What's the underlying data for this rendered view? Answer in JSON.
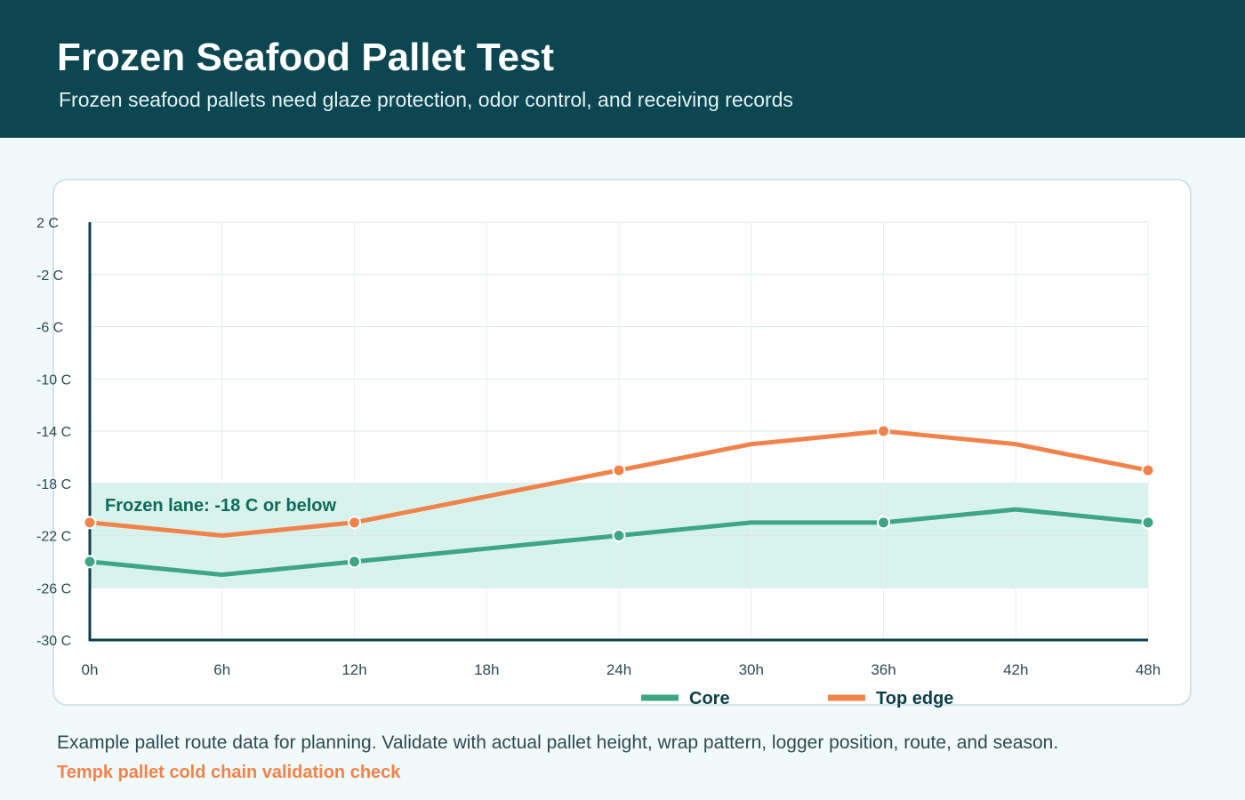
{
  "header": {
    "title": "Frozen Seafood Pallet Test",
    "subtitle": "Frozen seafood pallets need glaze protection, odor control, and receiving records"
  },
  "footer": {
    "note": "Example pallet route data for planning. Validate with actual pallet height, wrap pattern, logger position, route, and season.",
    "link_text": "Tempk pallet cold chain validation check"
  },
  "colors": {
    "header_bg": "#0b4651",
    "core": "#3ea585",
    "top_edge": "#f0834a",
    "band": "#d8f2ec",
    "band_label": "#0d6b59",
    "axis": "#0b3f4a"
  },
  "chart_data": {
    "type": "line",
    "x": [
      "0h",
      "6h",
      "12h",
      "18h",
      "24h",
      "30h",
      "36h",
      "42h",
      "48h"
    ],
    "x_hours": [
      0,
      6,
      12,
      18,
      24,
      30,
      36,
      42,
      48
    ],
    "y_ticks": [
      "2 C",
      "-2 C",
      "-6 C",
      "-10 C",
      "-14 C",
      "-18 C",
      "-22 C",
      "-26 C",
      "-30 C"
    ],
    "y_tick_values": [
      2,
      -2,
      -6,
      -10,
      -14,
      -18,
      -22,
      -26,
      -30
    ],
    "ylim": [
      -30,
      2
    ],
    "grid": true,
    "legend_position": "bottom-right",
    "band": {
      "from": -26,
      "to": -18,
      "label": "Frozen lane: -18 C or below"
    },
    "series": [
      {
        "name": "Core",
        "color": "#3ea585",
        "values": [
          -24,
          -25,
          -24,
          -23,
          -22,
          -21,
          -21,
          -20,
          -21
        ],
        "markers_at": [
          0,
          12,
          24,
          36,
          48
        ]
      },
      {
        "name": "Top edge",
        "color": "#f0834a",
        "values": [
          -21,
          -22,
          -21,
          -19,
          -17,
          -15,
          -14,
          -15,
          -17
        ],
        "markers_at": [
          0,
          12,
          24,
          36,
          48
        ]
      }
    ]
  }
}
